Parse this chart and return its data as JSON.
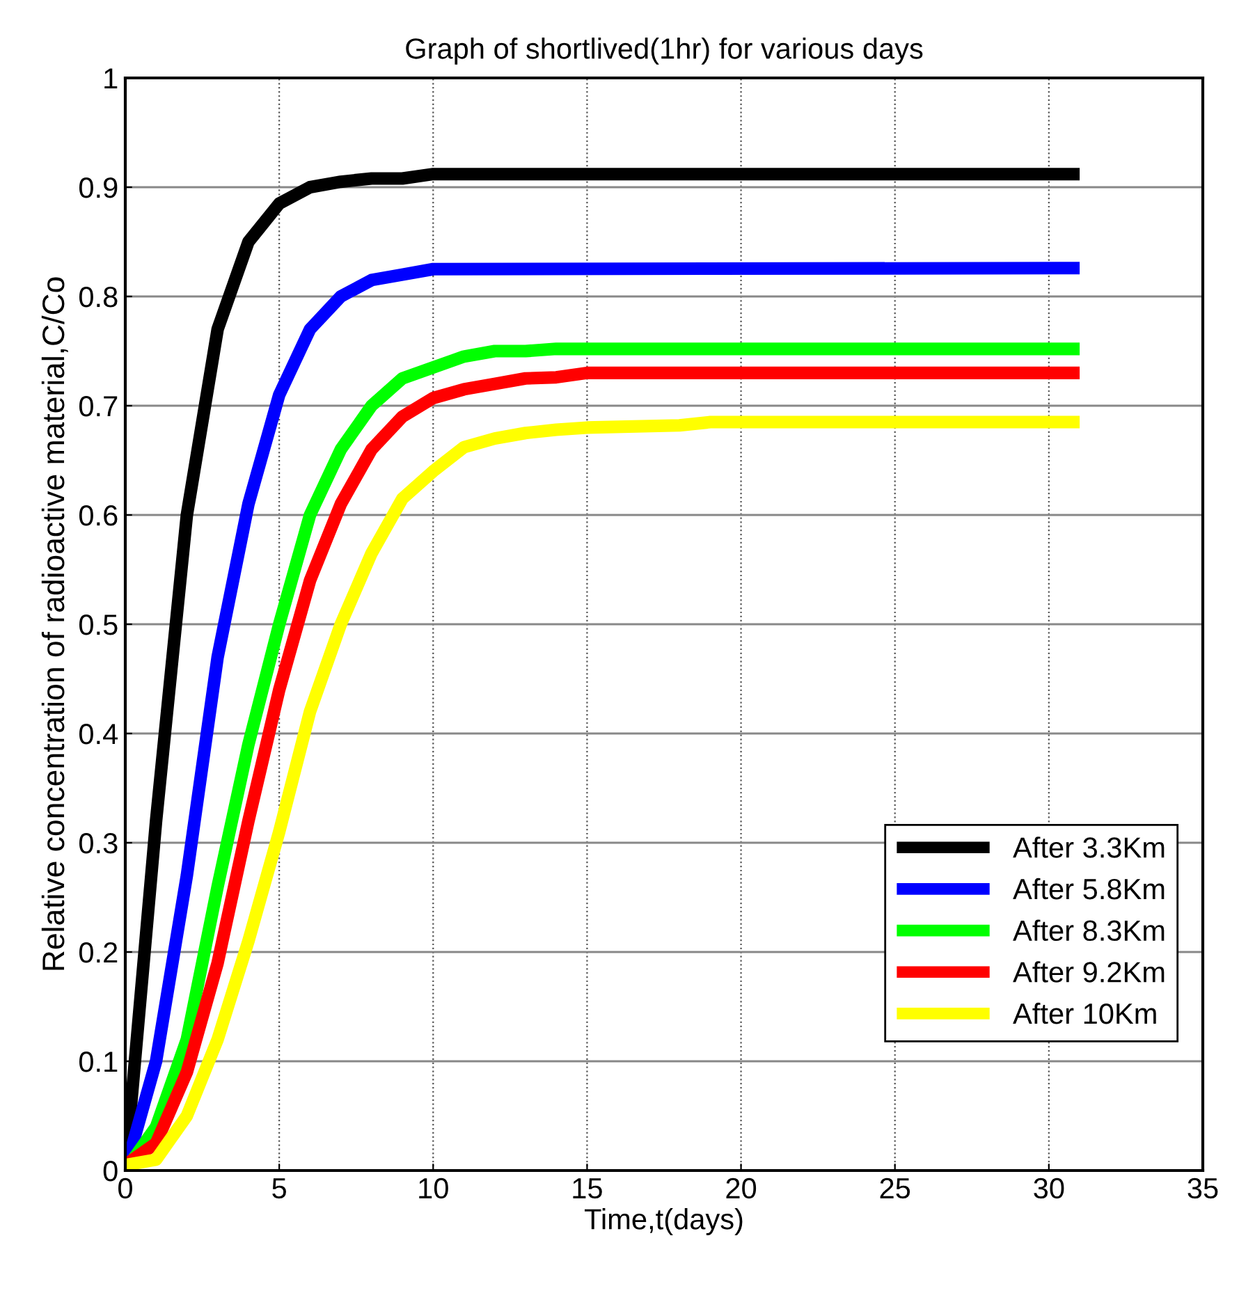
{
  "chart_data": {
    "type": "line",
    "title": "Graph of shortlived(1hr) for various days",
    "xlabel": "Time,t(days)",
    "ylabel": "Relative concentration of radioactive material,C/Co",
    "xlim": [
      0,
      35
    ],
    "xticks": [
      0,
      5,
      10,
      15,
      20,
      25,
      30,
      35
    ],
    "ylim": [
      0,
      1
    ],
    "yticks": [
      0,
      0.1,
      0.2,
      0.3,
      0.4,
      0.5,
      0.6,
      0.7,
      0.8,
      0.9,
      1
    ],
    "grid": true,
    "legend": "bottom right",
    "line_style": "solid",
    "series": [
      {
        "name": "After 3.3Km",
        "color": "#000000",
        "x": [
          0,
          1,
          2,
          3,
          4,
          5,
          6,
          7,
          8,
          9,
          10,
          31
        ],
        "values": [
          0,
          0.32,
          0.6,
          0.77,
          0.85,
          0.885,
          0.9,
          0.905,
          0.908,
          0.908,
          0.912,
          0.912
        ]
      },
      {
        "name": "After 5.8Km",
        "color": "#0000ff",
        "x": [
          0,
          1,
          2,
          3,
          4,
          5,
          6,
          7,
          8,
          9,
          10,
          31
        ],
        "values": [
          0,
          0.1,
          0.27,
          0.47,
          0.61,
          0.71,
          0.77,
          0.8,
          0.815,
          0.82,
          0.825,
          0.826
        ]
      },
      {
        "name": "After 8.3Km",
        "color": "#00ff00",
        "x": [
          0,
          1,
          2,
          3,
          4,
          5,
          6,
          7,
          8,
          9,
          10,
          11,
          12,
          13,
          14,
          31
        ],
        "values": [
          0,
          0.04,
          0.12,
          0.26,
          0.39,
          0.5,
          0.6,
          0.66,
          0.7,
          0.725,
          0.735,
          0.745,
          0.75,
          0.75,
          0.752,
          0.752
        ]
      },
      {
        "name": "After 9.2Km",
        "color": "#ff0000",
        "x": [
          0,
          1,
          2,
          3,
          4,
          5,
          6,
          7,
          8,
          9,
          10,
          11,
          12,
          13,
          14,
          15,
          31
        ],
        "values": [
          0.005,
          0.025,
          0.09,
          0.19,
          0.32,
          0.44,
          0.54,
          0.61,
          0.66,
          0.69,
          0.707,
          0.715,
          0.72,
          0.725,
          0.726,
          0.73,
          0.73
        ]
      },
      {
        "name": "After 10Km",
        "color": "#ffff00",
        "x": [
          0,
          1,
          2,
          3,
          4,
          5,
          6,
          7,
          8,
          9,
          10,
          11,
          12,
          13,
          14,
          15,
          18,
          19,
          31
        ],
        "values": [
          0.005,
          0.01,
          0.05,
          0.12,
          0.21,
          0.31,
          0.42,
          0.5,
          0.565,
          0.615,
          0.64,
          0.662,
          0.67,
          0.675,
          0.678,
          0.68,
          0.682,
          0.685,
          0.685
        ]
      }
    ]
  }
}
